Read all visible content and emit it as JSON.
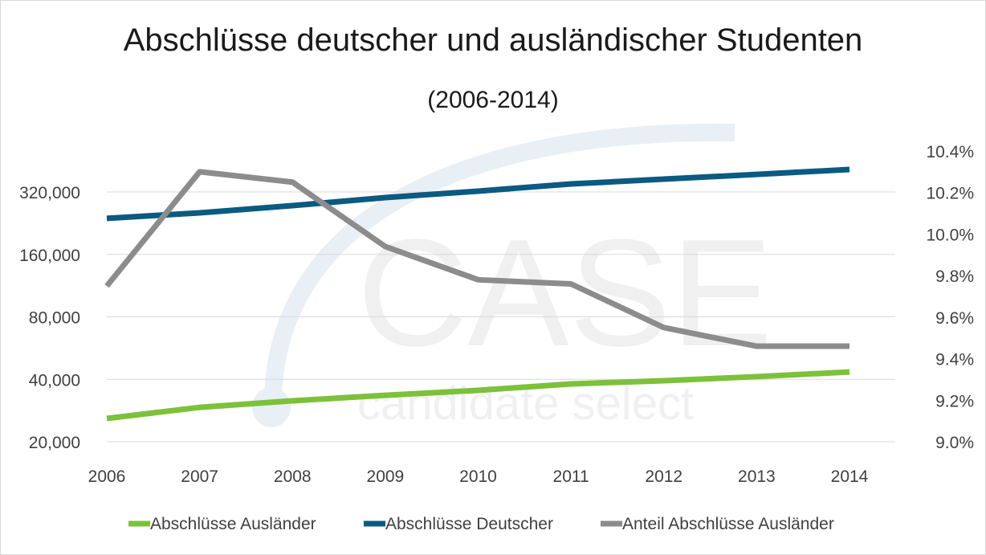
{
  "chart_data": {
    "type": "line",
    "title": "Abschlüsse deutscher und ausländischer Studenten",
    "subtitle": "(2006-2014)",
    "watermark": {
      "main": "CASE",
      "sub": "candidate select"
    },
    "categories": [
      "2006",
      "2007",
      "2008",
      "2009",
      "2010",
      "2011",
      "2012",
      "2013",
      "2014"
    ],
    "y_left": {
      "scale": "log2",
      "ticks": [
        20000,
        40000,
        80000,
        160000,
        320000
      ],
      "tick_labels": [
        "20,000",
        "40,000",
        "80,000",
        "160,000",
        "320,000"
      ],
      "range": [
        20000,
        480000
      ]
    },
    "y_right": {
      "scale": "linear",
      "ticks": [
        9.0,
        9.2,
        9.4,
        9.6,
        9.8,
        10.0,
        10.2,
        10.4
      ],
      "tick_labels": [
        "9.0%",
        "9.2%",
        "9.4%",
        "9.6%",
        "9.8%",
        "10.0%",
        "10.2%",
        "10.4%"
      ],
      "range": [
        9.0,
        10.4
      ]
    },
    "grid": true,
    "legend_position": "bottom",
    "series": [
      {
        "name": "Abschlüsse Ausländer",
        "axis": "left",
        "color": "#7dc13b",
        "values": [
          25900,
          29300,
          31500,
          33500,
          35400,
          38000,
          39400,
          41200,
          43400
        ]
      },
      {
        "name": "Abschlüsse Deutscher",
        "axis": "left",
        "color": "#0b5a82",
        "values": [
          238600,
          253800,
          275000,
          300600,
          323000,
          349800,
          369000,
          389000,
          410800
        ]
      },
      {
        "name": "Anteil Abschlüsse Ausländer",
        "axis": "right",
        "color": "#8c8c8c",
        "values": [
          9.75,
          10.3,
          10.25,
          9.94,
          9.78,
          9.76,
          9.55,
          9.46,
          9.46
        ]
      }
    ]
  }
}
